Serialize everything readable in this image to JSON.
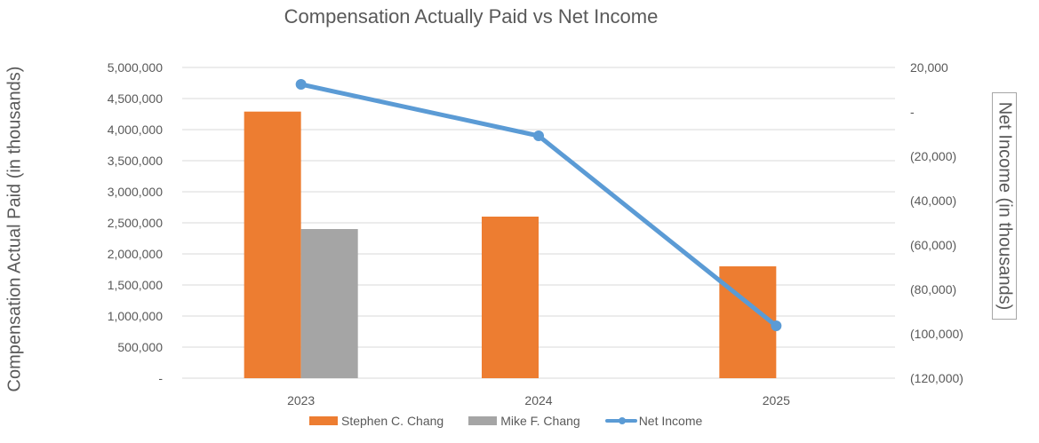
{
  "chart_data": {
    "type": "bar+line",
    "title": "Compensation Actually Paid vs Net Income",
    "xlabel": "",
    "ylabel": "Compensation Actual Paid (in thousands)",
    "y2label": "Net Income (in thousands)",
    "categories": [
      "2023",
      "2024",
      "2025"
    ],
    "series": [
      {
        "name": "Stephen C. Chang",
        "type": "bar",
        "axis": "left",
        "color": "#ed7d31",
        "values": [
          4290000,
          2600000,
          1800000
        ]
      },
      {
        "name": "Mike F. Chang",
        "type": "bar",
        "axis": "left",
        "color": "#a5a5a5",
        "values": [
          2400000,
          null,
          null
        ]
      },
      {
        "name": "Net Income",
        "type": "line",
        "axis": "right",
        "color": "#5b9bd5",
        "values": [
          12400,
          -10800,
          -96400
        ]
      }
    ],
    "ylim": [
      0,
      5000000
    ],
    "y2lim": [
      -120000,
      20000
    ],
    "yticks": [
      "5,000,000",
      "4,500,000",
      "4,000,000",
      "3,500,000",
      "3,000,000",
      "2,500,000",
      "2,000,000",
      "1,500,000",
      "1,000,000",
      "500,000",
      "-"
    ],
    "y2ticks": [
      "20,000",
      "-",
      "(20,000)",
      "(40,000)",
      "(60,000)",
      "(80,000)",
      "(100,000)",
      "(120,000)"
    ],
    "grid": true,
    "legend_position": "bottom"
  }
}
